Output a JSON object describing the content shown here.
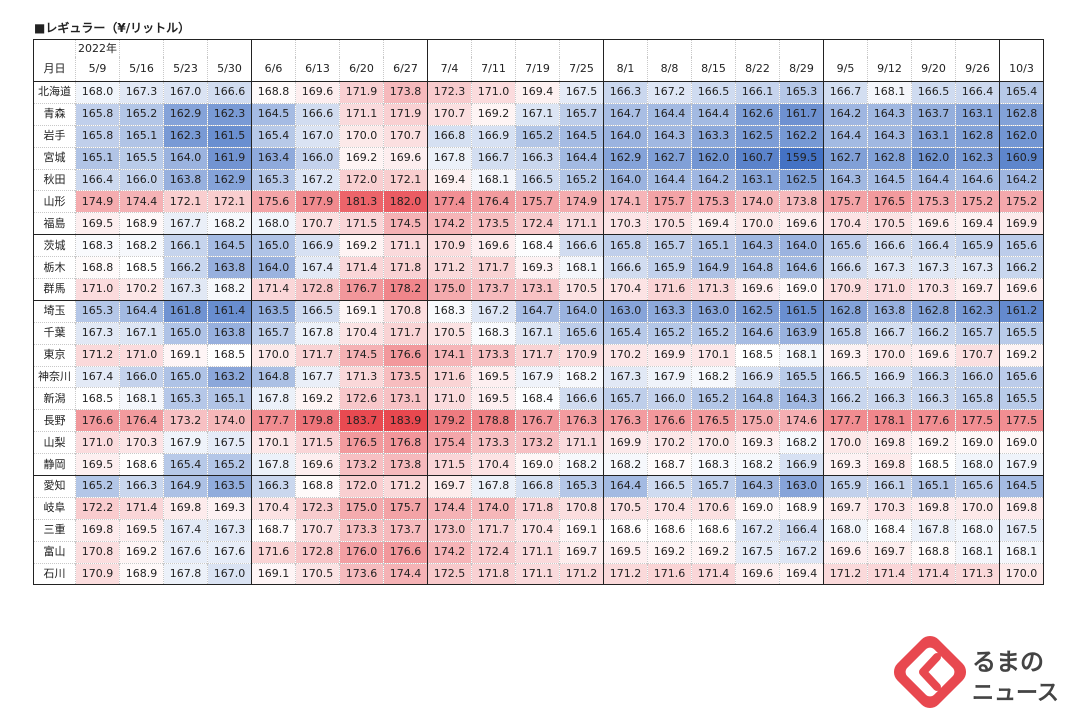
{
  "title": "■レギュラー（¥/リットル）",
  "year_label": "2022年",
  "logo_text": "くるまのニュース",
  "colors": {
    "low": "#4472c4",
    "high": "#e8484f",
    "mid": "#ffffff",
    "grid": "#c8c8c8",
    "border": "#222222"
  },
  "chart_data": {
    "type": "heatmap",
    "title": "■レギュラー（¥/リットル）",
    "corner_label": "月日",
    "columns": [
      "5/9",
      "5/16",
      "5/23",
      "5/30",
      "6/6",
      "6/13",
      "6/20",
      "6/27",
      "7/4",
      "7/11",
      "7/19",
      "7/25",
      "8/1",
      "8/8",
      "8/15",
      "8/22",
      "8/29",
      "9/5",
      "9/12",
      "9/20",
      "9/26",
      "10/3"
    ],
    "rows": [
      {
        "name": "北海道",
        "values": [
          168.0,
          167.3,
          167.0,
          166.6,
          168.8,
          169.6,
          171.9,
          173.8,
          172.3,
          171.0,
          169.4,
          167.5,
          166.3,
          167.2,
          166.5,
          166.1,
          165.3,
          166.7,
          168.1,
          166.5,
          166.4,
          165.4
        ]
      },
      {
        "name": "青森",
        "values": [
          165.8,
          165.2,
          162.9,
          162.3,
          164.5,
          166.6,
          171.1,
          171.9,
          170.7,
          169.2,
          167.1,
          165.7,
          164.7,
          164.4,
          164.4,
          162.6,
          161.7,
          164.2,
          164.3,
          163.7,
          163.1,
          162.8
        ]
      },
      {
        "name": "岩手",
        "values": [
          165.8,
          165.1,
          162.3,
          161.5,
          165.4,
          167.0,
          170.0,
          170.7,
          166.8,
          166.9,
          165.2,
          164.5,
          164.0,
          164.3,
          163.3,
          162.5,
          162.2,
          164.4,
          164.3,
          163.1,
          162.8,
          162.0
        ]
      },
      {
        "name": "宮城",
        "values": [
          165.1,
          165.5,
          164.0,
          161.9,
          163.4,
          166.0,
          169.2,
          169.6,
          167.8,
          166.7,
          166.3,
          164.4,
          162.9,
          162.7,
          162.0,
          160.7,
          159.5,
          162.7,
          162.8,
          162.0,
          162.3,
          160.9
        ]
      },
      {
        "name": "秋田",
        "values": [
          166.4,
          166.0,
          163.8,
          162.9,
          165.3,
          167.2,
          172.0,
          172.1,
          169.4,
          168.1,
          166.5,
          165.2,
          164.0,
          164.4,
          164.2,
          163.1,
          162.5,
          164.3,
          164.5,
          164.4,
          164.6,
          164.2
        ]
      },
      {
        "name": "山形",
        "values": [
          174.9,
          174.4,
          172.1,
          172.1,
          175.6,
          177.9,
          181.3,
          182.0,
          177.4,
          176.4,
          175.7,
          174.9,
          174.1,
          175.7,
          175.3,
          174.0,
          173.8,
          175.7,
          176.5,
          175.3,
          175.2,
          175.2
        ]
      },
      {
        "name": "福島",
        "values": [
          169.5,
          168.9,
          167.7,
          168.2,
          168.0,
          170.7,
          171.5,
          174.5,
          174.2,
          173.5,
          172.4,
          171.1,
          170.3,
          170.5,
          169.4,
          170.0,
          169.6,
          170.4,
          170.5,
          169.6,
          169.4,
          169.9
        ]
      },
      {
        "name": "茨城",
        "values": [
          168.3,
          168.2,
          166.1,
          164.5,
          165.0,
          166.9,
          169.2,
          171.1,
          170.9,
          169.6,
          168.4,
          166.6,
          165.8,
          165.7,
          165.1,
          164.3,
          164.0,
          165.6,
          166.6,
          166.4,
          165.9,
          165.6
        ]
      },
      {
        "name": "栃木",
        "values": [
          168.8,
          168.5,
          166.2,
          163.8,
          164.0,
          167.4,
          171.4,
          171.8,
          171.2,
          171.7,
          169.3,
          168.1,
          166.6,
          165.9,
          164.9,
          164.8,
          164.6,
          166.6,
          167.3,
          167.3,
          167.3,
          166.2
        ]
      },
      {
        "name": "群馬",
        "values": [
          171.0,
          170.2,
          167.3,
          168.2,
          171.4,
          172.8,
          176.7,
          178.2,
          175.0,
          173.7,
          173.1,
          170.5,
          170.4,
          171.6,
          171.3,
          169.6,
          169.0,
          170.9,
          171.0,
          170.3,
          169.7,
          169.6
        ]
      },
      {
        "name": "埼玉",
        "values": [
          165.3,
          164.4,
          161.8,
          161.4,
          163.5,
          166.5,
          169.1,
          170.8,
          168.3,
          167.2,
          164.7,
          164.0,
          163.0,
          163.3,
          163.0,
          162.5,
          161.5,
          162.8,
          163.8,
          162.8,
          162.3,
          161.2
        ]
      },
      {
        "name": "千葉",
        "values": [
          167.3,
          167.1,
          165.0,
          163.8,
          165.7,
          167.8,
          170.4,
          171.7,
          170.5,
          168.3,
          167.1,
          165.6,
          165.4,
          165.2,
          165.2,
          164.6,
          163.9,
          165.8,
          166.7,
          166.2,
          165.7,
          165.5
        ]
      },
      {
        "name": "東京",
        "values": [
          171.2,
          171.0,
          169.1,
          168.5,
          170.0,
          171.7,
          174.5,
          176.6,
          174.1,
          173.3,
          171.7,
          170.9,
          170.2,
          169.9,
          170.1,
          168.5,
          168.1,
          169.3,
          170.0,
          169.6,
          170.7,
          169.2
        ]
      },
      {
        "name": "神奈川",
        "values": [
          167.4,
          166.0,
          165.0,
          163.2,
          164.8,
          167.7,
          171.3,
          173.5,
          171.6,
          169.5,
          167.9,
          168.2,
          167.3,
          167.9,
          168.2,
          166.9,
          165.5,
          166.5,
          166.9,
          166.3,
          166.0,
          165.6
        ]
      },
      {
        "name": "新潟",
        "values": [
          168.5,
          168.1,
          165.3,
          165.1,
          167.8,
          169.2,
          172.6,
          173.1,
          171.0,
          169.5,
          168.4,
          166.6,
          165.7,
          166.0,
          165.2,
          164.8,
          164.3,
          166.2,
          166.3,
          166.3,
          165.8,
          165.5
        ]
      },
      {
        "name": "長野",
        "values": [
          176.6,
          176.4,
          173.2,
          174.0,
          177.7,
          179.8,
          183.7,
          183.9,
          179.2,
          178.8,
          176.7,
          176.3,
          176.3,
          176.6,
          176.5,
          175.0,
          174.6,
          177.7,
          178.1,
          177.6,
          177.5,
          177.5
        ]
      },
      {
        "name": "山梨",
        "values": [
          171.0,
          170.3,
          167.9,
          167.5,
          170.1,
          171.5,
          176.5,
          176.8,
          175.4,
          173.3,
          173.2,
          171.1,
          169.9,
          170.2,
          170.0,
          169.3,
          168.2,
          170.0,
          169.8,
          169.2,
          169.0,
          169.0
        ]
      },
      {
        "name": "静岡",
        "values": [
          169.5,
          168.6,
          165.4,
          165.2,
          167.8,
          169.6,
          173.2,
          173.8,
          171.5,
          170.4,
          169.0,
          168.2,
          168.2,
          168.7,
          168.3,
          168.2,
          166.9,
          169.3,
          169.8,
          168.5,
          168.0,
          167.9
        ]
      },
      {
        "name": "愛知",
        "values": [
          165.2,
          166.3,
          164.9,
          163.5,
          166.3,
          168.8,
          172.0,
          171.2,
          169.7,
          167.8,
          166.8,
          165.3,
          164.4,
          166.5,
          165.7,
          164.3,
          163.0,
          165.9,
          166.1,
          165.1,
          165.6,
          164.5
        ]
      },
      {
        "name": "岐阜",
        "values": [
          172.2,
          171.4,
          169.8,
          169.3,
          170.4,
          172.3,
          175.0,
          175.7,
          174.4,
          174.0,
          171.8,
          170.8,
          170.5,
          170.4,
          170.6,
          169.0,
          168.9,
          169.7,
          170.3,
          169.8,
          170.0,
          169.8
        ]
      },
      {
        "name": "三重",
        "values": [
          169.8,
          169.5,
          167.4,
          167.3,
          168.7,
          170.7,
          173.3,
          173.7,
          173.0,
          171.7,
          170.4,
          169.1,
          168.6,
          168.6,
          168.6,
          167.2,
          166.4,
          168.0,
          168.4,
          167.8,
          168.0,
          167.5
        ]
      },
      {
        "name": "富山",
        "values": [
          170.8,
          169.2,
          167.6,
          167.6,
          171.6,
          172.8,
          176.0,
          176.6,
          174.2,
          172.4,
          171.1,
          169.7,
          169.5,
          169.2,
          169.2,
          167.5,
          167.2,
          169.6,
          169.7,
          168.8,
          168.1,
          168.1
        ]
      },
      {
        "name": "石川",
        "values": [
          170.9,
          168.9,
          167.8,
          167.0,
          169.1,
          170.5,
          173.6,
          174.4,
          172.5,
          171.8,
          171.1,
          171.2,
          171.2,
          171.6,
          171.4,
          169.6,
          169.4,
          171.2,
          171.4,
          171.4,
          171.3,
          170.0
        ]
      }
    ]
  }
}
